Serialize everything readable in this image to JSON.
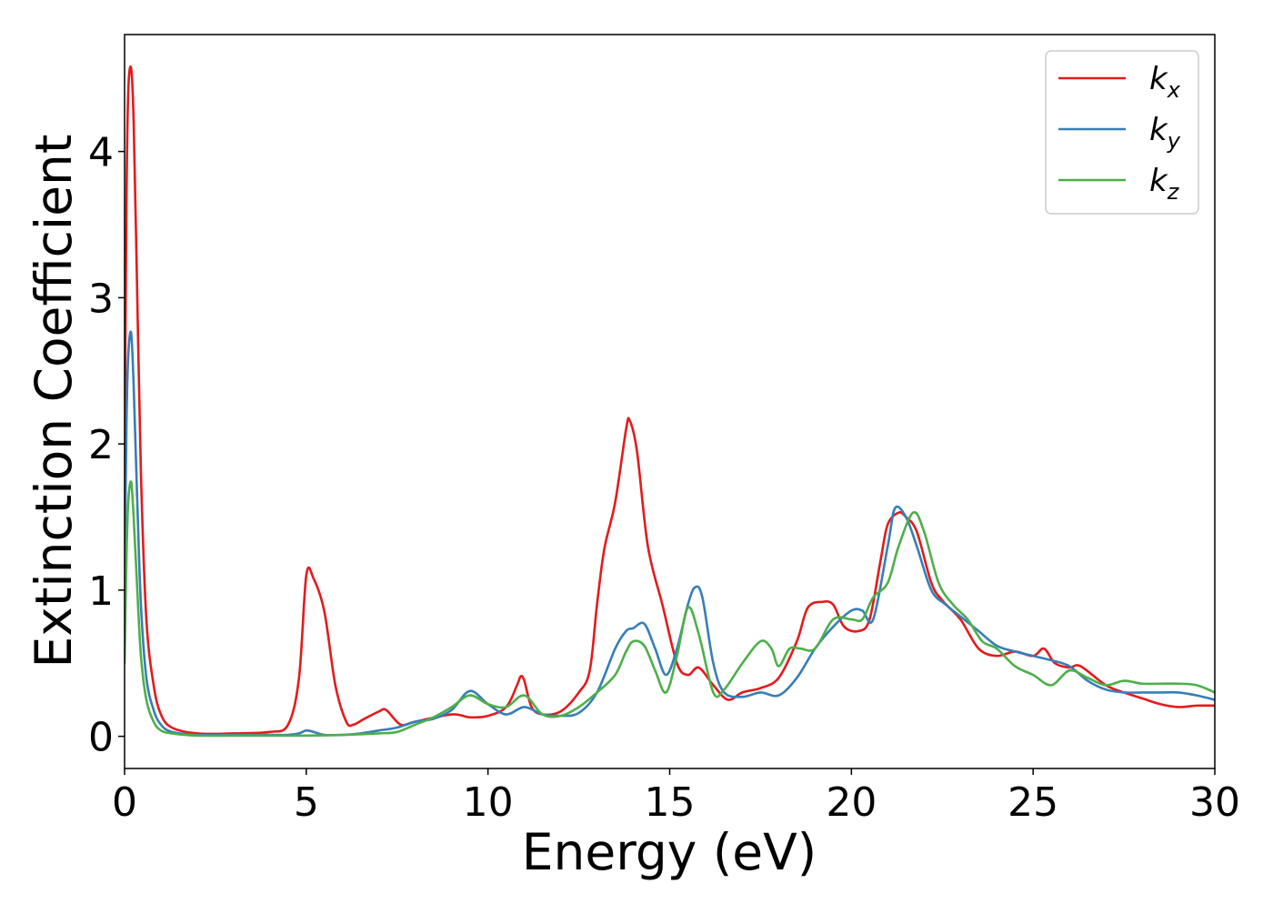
{
  "chart_data": {
    "type": "line",
    "xlabel": "Energy (eV)",
    "ylabel": "Extinction Coefficient",
    "xlim": [
      0,
      30
    ],
    "ylim": [
      -0.22,
      4.8
    ],
    "xticks": [
      0,
      5,
      10,
      15,
      20,
      25,
      30
    ],
    "yticks": [
      0,
      1,
      2,
      3,
      4
    ],
    "grid": false,
    "legend_position": "top-right",
    "series": [
      {
        "name": "k",
        "subscript": "x",
        "color": "#e41a1c",
        "x": [
          0,
          0.05,
          0.1,
          0.18,
          0.25,
          0.35,
          0.45,
          0.6,
          0.8,
          1.0,
          1.3,
          2.0,
          3.0,
          4.0,
          4.5,
          4.8,
          5.0,
          5.2,
          5.5,
          5.8,
          6.1,
          6.3,
          6.6,
          7.0,
          7.2,
          7.6,
          8.0,
          9.0,
          9.5,
          10.0,
          10.5,
          10.8,
          10.9,
          11.0,
          11.2,
          11.5,
          12.0,
          12.5,
          12.8,
          13.0,
          13.2,
          13.5,
          13.8,
          13.9,
          14.1,
          14.4,
          14.8,
          15.2,
          15.5,
          15.8,
          16.2,
          16.6,
          17.0,
          17.5,
          18.0,
          18.5,
          18.8,
          19.2,
          19.5,
          19.8,
          20.2,
          20.5,
          20.8,
          21.0,
          21.3,
          21.5,
          21.8,
          22.2,
          22.5,
          23.0,
          23.5,
          24.0,
          24.5,
          25.0,
          25.3,
          25.6,
          26.0,
          26.3,
          27.0,
          27.5,
          28.0,
          28.5,
          29.0,
          29.5,
          30.0
        ],
        "y": [
          1.8,
          3.6,
          4.4,
          4.57,
          4.2,
          3.0,
          1.8,
          0.8,
          0.35,
          0.15,
          0.06,
          0.02,
          0.02,
          0.03,
          0.08,
          0.4,
          1.1,
          1.08,
          0.85,
          0.35,
          0.1,
          0.08,
          0.12,
          0.17,
          0.18,
          0.08,
          0.1,
          0.15,
          0.13,
          0.14,
          0.2,
          0.35,
          0.41,
          0.38,
          0.2,
          0.15,
          0.17,
          0.3,
          0.45,
          0.9,
          1.28,
          1.6,
          2.1,
          2.16,
          1.95,
          1.3,
          0.9,
          0.5,
          0.42,
          0.47,
          0.35,
          0.25,
          0.3,
          0.33,
          0.4,
          0.65,
          0.88,
          0.92,
          0.9,
          0.75,
          0.72,
          0.8,
          1.2,
          1.45,
          1.53,
          1.5,
          1.4,
          1.05,
          0.93,
          0.8,
          0.6,
          0.55,
          0.58,
          0.55,
          0.6,
          0.5,
          0.47,
          0.48,
          0.35,
          0.3,
          0.26,
          0.22,
          0.2,
          0.21,
          0.21
        ]
      },
      {
        "name": "k",
        "subscript": "y",
        "color": "#377eb8",
        "x": [
          0,
          0.05,
          0.1,
          0.18,
          0.25,
          0.35,
          0.45,
          0.6,
          0.8,
          1.0,
          1.3,
          2.0,
          3.0,
          4.0,
          4.5,
          4.8,
          5.0,
          5.2,
          5.5,
          6.0,
          6.5,
          7.0,
          7.5,
          8.0,
          8.5,
          9.0,
          9.5,
          10.0,
          10.5,
          11.0,
          11.5,
          12.0,
          12.5,
          13.0,
          13.5,
          13.8,
          14.0,
          14.3,
          14.6,
          14.9,
          15.2,
          15.5,
          15.7,
          15.9,
          16.2,
          16.5,
          17.0,
          17.5,
          18.0,
          18.5,
          19.0,
          19.5,
          20.0,
          20.3,
          20.6,
          21.0,
          21.2,
          21.5,
          21.8,
          22.2,
          22.6,
          23.0,
          23.5,
          24.0,
          24.5,
          25.0,
          25.5,
          26.0,
          26.5,
          27.0,
          27.5,
          28.0,
          28.5,
          29.0,
          29.5,
          30.0
        ],
        "y": [
          1.0,
          2.1,
          2.6,
          2.76,
          2.4,
          1.6,
          0.9,
          0.4,
          0.18,
          0.08,
          0.03,
          0.01,
          0.01,
          0.01,
          0.01,
          0.02,
          0.04,
          0.03,
          0.01,
          0.01,
          0.02,
          0.04,
          0.06,
          0.1,
          0.12,
          0.18,
          0.31,
          0.22,
          0.15,
          0.2,
          0.15,
          0.14,
          0.16,
          0.3,
          0.6,
          0.72,
          0.74,
          0.77,
          0.6,
          0.42,
          0.6,
          0.9,
          1.02,
          0.95,
          0.5,
          0.3,
          0.27,
          0.3,
          0.28,
          0.4,
          0.6,
          0.75,
          0.86,
          0.86,
          0.8,
          1.3,
          1.56,
          1.5,
          1.3,
          1.0,
          0.9,
          0.82,
          0.72,
          0.62,
          0.58,
          0.55,
          0.52,
          0.48,
          0.38,
          0.32,
          0.3,
          0.3,
          0.3,
          0.3,
          0.28,
          0.25
        ]
      },
      {
        "name": "k",
        "subscript": "z",
        "color": "#4daf4a",
        "x": [
          0,
          0.05,
          0.1,
          0.18,
          0.25,
          0.35,
          0.45,
          0.6,
          0.8,
          1.0,
          1.3,
          2.0,
          3.0,
          4.0,
          5.0,
          6.0,
          7.0,
          7.5,
          8.0,
          8.5,
          9.0,
          9.5,
          10.0,
          10.5,
          11.0,
          11.5,
          12.0,
          12.5,
          13.0,
          13.5,
          13.8,
          14.0,
          14.3,
          14.6,
          14.9,
          15.2,
          15.5,
          15.8,
          16.2,
          16.5,
          17.0,
          17.5,
          17.8,
          18.0,
          18.3,
          18.6,
          19.0,
          19.5,
          20.0,
          20.3,
          20.6,
          21.0,
          21.3,
          21.7,
          22.0,
          22.4,
          22.8,
          23.2,
          23.6,
          24.0,
          24.5,
          25.0,
          25.5,
          26.0,
          26.5,
          27.0,
          27.5,
          28.0,
          28.5,
          29.0,
          29.5,
          30.0
        ],
        "y": [
          0.5,
          1.2,
          1.6,
          1.74,
          1.5,
          1.0,
          0.55,
          0.25,
          0.1,
          0.04,
          0.02,
          0.005,
          0.005,
          0.005,
          0.005,
          0.01,
          0.02,
          0.03,
          0.08,
          0.13,
          0.2,
          0.28,
          0.22,
          0.2,
          0.28,
          0.15,
          0.14,
          0.2,
          0.3,
          0.42,
          0.58,
          0.65,
          0.62,
          0.45,
          0.3,
          0.55,
          0.88,
          0.7,
          0.3,
          0.32,
          0.5,
          0.65,
          0.6,
          0.48,
          0.6,
          0.6,
          0.6,
          0.8,
          0.8,
          0.8,
          0.95,
          1.05,
          1.3,
          1.53,
          1.4,
          1.05,
          0.9,
          0.8,
          0.65,
          0.6,
          0.48,
          0.42,
          0.35,
          0.45,
          0.4,
          0.35,
          0.38,
          0.36,
          0.36,
          0.36,
          0.35,
          0.3
        ]
      }
    ]
  }
}
